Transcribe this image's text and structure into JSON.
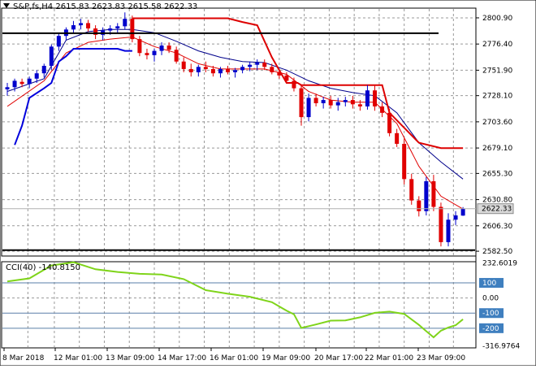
{
  "header": {
    "symbol": "S&P,fs,H4",
    "ohlc": "2615.83 2623.83 2615.58 2622.33"
  },
  "cci_header": {
    "label": "CCI(40)",
    "value": "-140.8150"
  },
  "colors": {
    "bull_candle": "#0000cc",
    "bear_candle": "#e00000",
    "ma_fast": "#e00000",
    "ma_slow": "#00008b",
    "trailing_stop": "#dd0000",
    "envelope_low": "#0000dd",
    "hline": "#000000",
    "cci_line": "#7fd41a",
    "price_badge_bg": "#d9d9d9",
    "axis_badge_blue": "#3f7fbf"
  },
  "chart_data": [
    {
      "type": "candlestick",
      "title": "",
      "xlabel": "",
      "ylabel": "",
      "ylim": [
        2578,
        2810
      ],
      "grid": true,
      "y_ticks": [
        "2800.90",
        "2776.40",
        "2751.90",
        "2728.10",
        "2703.60",
        "2679.10",
        "2655.30",
        "2630.80",
        "2606.30",
        "2582.50"
      ],
      "x_ticks": [
        "8 Mar 2018",
        "12 Mar 01:00",
        "13 Mar 09:00",
        "14 Mar 17:00",
        "16 Mar 01:00",
        "19 Mar 09:00",
        "20 Mar 17:00",
        "22 Mar 01:00",
        "23 Mar 09:00"
      ],
      "current_price": "2622.33",
      "horizontal_levels": [
        2786.5,
        2583.5
      ],
      "candles": [
        [
          2734,
          2740,
          2728,
          2736
        ],
        [
          2736,
          2744,
          2732,
          2742
        ],
        [
          2741,
          2744,
          2736,
          2739
        ],
        [
          2739,
          2746,
          2735,
          2744
        ],
        [
          2744,
          2752,
          2740,
          2749
        ],
        [
          2749,
          2758,
          2745,
          2756
        ],
        [
          2756,
          2776,
          2752,
          2774
        ],
        [
          2774,
          2786,
          2770,
          2784
        ],
        [
          2784,
          2792,
          2780,
          2790
        ],
        [
          2790,
          2798,
          2786,
          2794
        ],
        [
          2794,
          2800,
          2790,
          2796
        ],
        [
          2796,
          2799,
          2788,
          2791
        ],
        [
          2791,
          2794,
          2781,
          2785
        ],
        [
          2785,
          2792,
          2780,
          2789
        ],
        [
          2789,
          2794,
          2785,
          2791
        ],
        [
          2791,
          2796,
          2786,
          2793
        ],
        [
          2793,
          2806,
          2790,
          2800
        ],
        [
          2800,
          2803,
          2778,
          2781
        ],
        [
          2781,
          2784,
          2765,
          2768
        ],
        [
          2768,
          2772,
          2762,
          2766
        ],
        [
          2766,
          2772,
          2760,
          2770
        ],
        [
          2770,
          2778,
          2766,
          2775
        ],
        [
          2775,
          2778,
          2768,
          2771
        ],
        [
          2771,
          2774,
          2758,
          2760
        ],
        [
          2760,
          2764,
          2750,
          2753
        ],
        [
          2753,
          2758,
          2746,
          2750
        ],
        [
          2750,
          2757,
          2746,
          2755
        ],
        [
          2755,
          2760,
          2750,
          2753
        ],
        [
          2753,
          2756,
          2746,
          2749
        ],
        [
          2749,
          2755,
          2745,
          2753
        ],
        [
          2753,
          2756,
          2748,
          2750
        ],
        [
          2750,
          2754,
          2745,
          2752
        ],
        [
          2752,
          2757,
          2749,
          2755
        ],
        [
          2755,
          2760,
          2751,
          2757
        ],
        [
          2757,
          2762,
          2752,
          2759
        ],
        [
          2759,
          2762,
          2752,
          2755
        ],
        [
          2755,
          2758,
          2748,
          2750
        ],
        [
          2750,
          2753,
          2744,
          2747
        ],
        [
          2747,
          2750,
          2740,
          2742
        ],
        [
          2742,
          2745,
          2732,
          2735
        ],
        [
          2735,
          2738,
          2700,
          2708
        ],
        [
          2708,
          2730,
          2704,
          2726
        ],
        [
          2726,
          2730,
          2718,
          2721
        ],
        [
          2721,
          2727,
          2716,
          2724
        ],
        [
          2724,
          2728,
          2716,
          2719
        ],
        [
          2719,
          2726,
          2714,
          2722
        ],
        [
          2722,
          2727,
          2718,
          2724
        ],
        [
          2724,
          2728,
          2716,
          2720
        ],
        [
          2720,
          2724,
          2714,
          2718
        ],
        [
          2718,
          2738,
          2715,
          2733
        ],
        [
          2733,
          2738,
          2714,
          2718
        ],
        [
          2718,
          2722,
          2708,
          2712
        ],
        [
          2712,
          2716,
          2690,
          2693
        ],
        [
          2693,
          2697,
          2680,
          2683
        ],
        [
          2683,
          2688,
          2645,
          2650
        ],
        [
          2650,
          2655,
          2626,
          2630
        ],
        [
          2630,
          2634,
          2615,
          2620
        ],
        [
          2620,
          2652,
          2616,
          2648
        ],
        [
          2648,
          2654,
          2620,
          2624
        ],
        [
          2624,
          2628,
          2587,
          2591
        ],
        [
          2591,
          2618,
          2587,
          2612
        ],
        [
          2612,
          2620,
          2607,
          2616
        ],
        [
          2615.83,
          2623.83,
          2615.58,
          2622.33
        ]
      ],
      "ma_fast": [
        [
          0,
          2718
        ],
        [
          5,
          2742
        ],
        [
          8,
          2768
        ],
        [
          11,
          2778
        ],
        [
          14,
          2781
        ],
        [
          17,
          2783
        ],
        [
          20,
          2774
        ],
        [
          23,
          2768
        ],
        [
          26,
          2758
        ],
        [
          29,
          2753
        ],
        [
          32,
          2753
        ],
        [
          35,
          2753
        ],
        [
          38,
          2748
        ],
        [
          41,
          2732
        ],
        [
          44,
          2724
        ],
        [
          47,
          2722
        ],
        [
          50,
          2722
        ],
        [
          53,
          2702
        ],
        [
          56,
          2662
        ],
        [
          59,
          2634
        ],
        [
          62,
          2622
        ]
      ],
      "ma_slow": [
        [
          0,
          2732
        ],
        [
          5,
          2744
        ],
        [
          8,
          2780
        ],
        [
          11,
          2788
        ],
        [
          14,
          2790
        ],
        [
          17,
          2790
        ],
        [
          20,
          2787
        ],
        [
          23,
          2779
        ],
        [
          26,
          2770
        ],
        [
          29,
          2764
        ],
        [
          32,
          2760
        ],
        [
          35,
          2759
        ],
        [
          38,
          2752
        ],
        [
          41,
          2742
        ],
        [
          44,
          2735
        ],
        [
          47,
          2731
        ],
        [
          50,
          2728
        ],
        [
          53,
          2712
        ],
        [
          56,
          2684
        ],
        [
          59,
          2666
        ],
        [
          62,
          2650
        ]
      ],
      "trailing_stop": [
        [
          17,
          2800.5
        ],
        [
          30,
          2800.5
        ],
        [
          32,
          2797
        ],
        [
          34,
          2794
        ],
        [
          36,
          2764
        ],
        [
          38,
          2740
        ],
        [
          39.5,
          2740
        ],
        [
          40,
          2738
        ],
        [
          51,
          2738
        ],
        [
          52,
          2712
        ],
        [
          56,
          2684
        ],
        [
          59,
          2679
        ],
        [
          62,
          2679
        ]
      ],
      "envelope_low": [
        [
          1,
          2682
        ],
        [
          2,
          2700
        ],
        [
          3,
          2726
        ],
        [
          5,
          2735
        ],
        [
          6,
          2740
        ],
        [
          7,
          2760
        ],
        [
          8,
          2765
        ],
        [
          9,
          2772
        ],
        [
          14,
          2772
        ],
        [
          15,
          2772
        ],
        [
          16,
          2770
        ],
        [
          17,
          2770
        ]
      ]
    },
    {
      "type": "line",
      "title": "",
      "xlabel": "",
      "ylabel": "",
      "ylim": [
        -330,
        240
      ],
      "grid": true,
      "y_ticks": [
        "232.6019",
        "100",
        "0.00",
        "-100",
        "-200",
        "-316.9764"
      ],
      "levels": [
        100,
        -100,
        -200
      ],
      "series": [
        {
          "values": [
            [
              0,
              110
            ],
            [
              3,
              130
            ],
            [
              6,
              215
            ],
            [
              9,
              236
            ],
            [
              12,
              190
            ],
            [
              15,
              172
            ],
            [
              18,
              160
            ],
            [
              21,
              155
            ],
            [
              24,
              125
            ],
            [
              27,
              52
            ],
            [
              30,
              28
            ],
            [
              33,
              8
            ],
            [
              36,
              -28
            ],
            [
              38,
              -84
            ],
            [
              39,
              -108
            ],
            [
              40,
              -198
            ],
            [
              42,
              -175
            ],
            [
              44,
              -150
            ],
            [
              46,
              -148
            ],
            [
              48,
              -128
            ],
            [
              50,
              -98
            ],
            [
              52,
              -90
            ],
            [
              54,
              -105
            ],
            [
              56,
              -178
            ],
            [
              57,
              -220
            ],
            [
              58,
              -260
            ],
            [
              59,
              -216
            ],
            [
              60,
              -195
            ],
            [
              61,
              -180
            ],
            [
              62,
              -140.8
            ]
          ]
        }
      ]
    }
  ]
}
